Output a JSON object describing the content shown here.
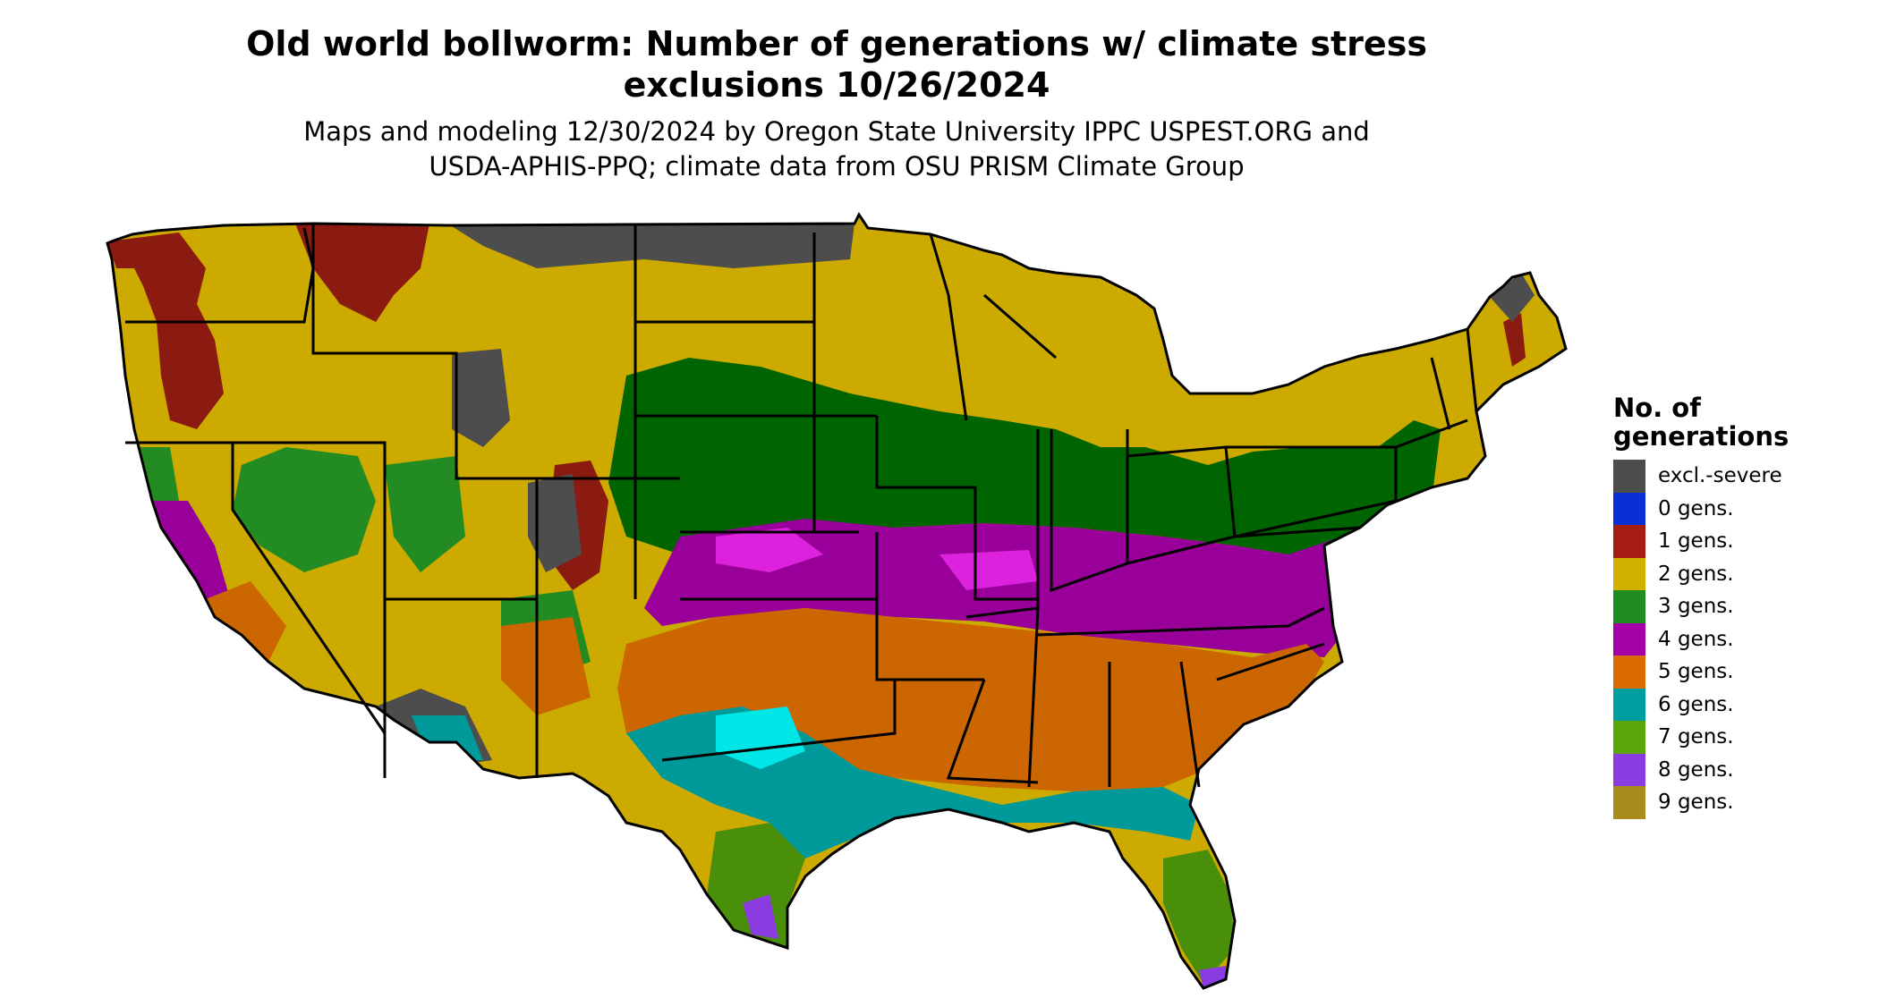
{
  "title_line1": "Old world bollworm: Number of generations w/ climate stress",
  "title_line2": "exclusions 10/26/2024",
  "subtitle_line1": "Maps and modeling 12/30/2024 by Oregon State University IPPC USPEST.ORG and",
  "subtitle_line2": "USDA-APHIS-PPQ; climate data from OSU PRISM Climate Group",
  "legend": {
    "title_line1": "No. of",
    "title_line2": "generations",
    "items": [
      {
        "label": "excl.-severe",
        "color": "#4d4d4d"
      },
      {
        "label": "0 gens.",
        "color": "#0a2fd4"
      },
      {
        "label": "1 gens.",
        "color": "#a51d12"
      },
      {
        "label": "2 gens.",
        "color": "#d2b000"
      },
      {
        "label": "3 gens.",
        "color": "#1e8c1e"
      },
      {
        "label": "4 gens.",
        "color": "#a400a8"
      },
      {
        "label": "5 gens.",
        "color": "#d96b00"
      },
      {
        "label": "6 gens.",
        "color": "#009e9e"
      },
      {
        "label": "7 gens.",
        "color": "#5aa50a"
      },
      {
        "label": "8 gens.",
        "color": "#8a3ce0"
      },
      {
        "label": "9 gens.",
        "color": "#a88c1c"
      }
    ]
  },
  "map_colors": {
    "excl_severe": "#4d4d4d",
    "gen1": "#8b1a10",
    "gen2": "#ccaa00",
    "gen3_dark": "#006400",
    "gen3": "#228b22",
    "gen4": "#990099",
    "gen4_light": "#dd22dd",
    "gen5": "#cc6600",
    "gen6": "#009999",
    "gen6_light": "#00e5e5",
    "gen7": "#4a8f0a",
    "gen8": "#8a3ce0",
    "border": "#000000"
  }
}
